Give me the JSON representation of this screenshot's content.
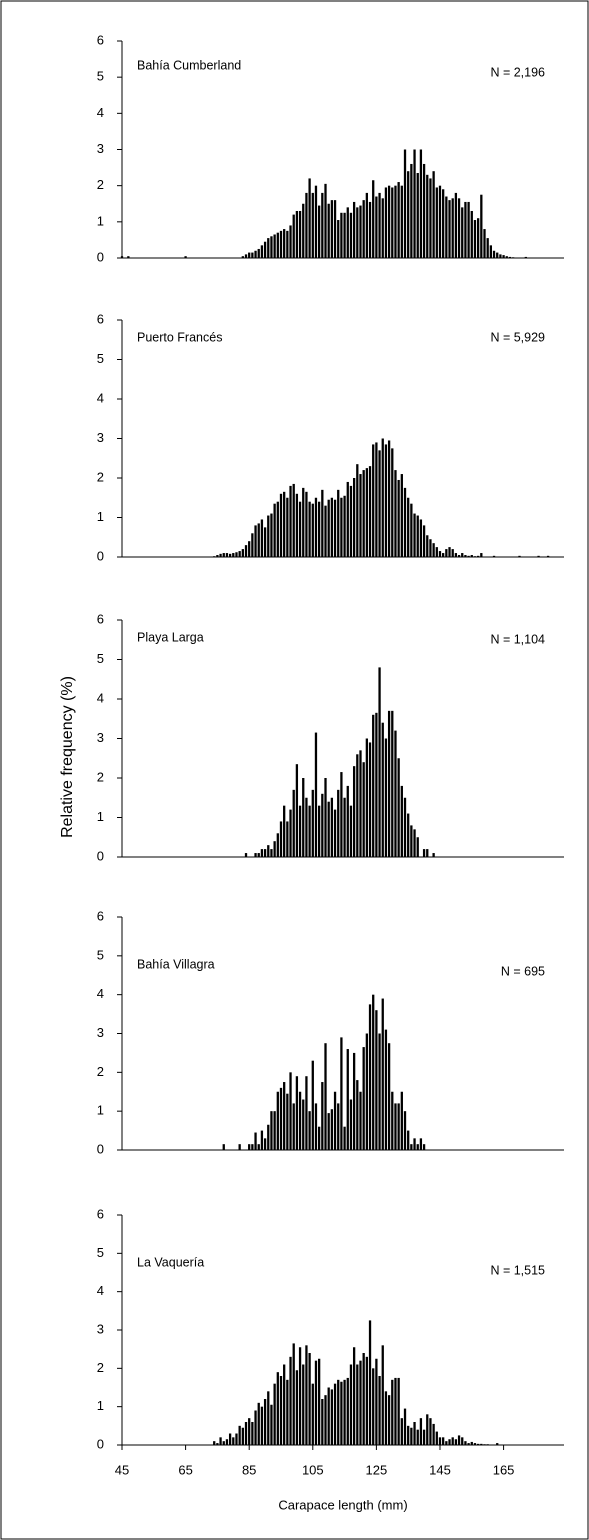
{
  "chart_data": [
    {
      "type": "bar",
      "title": "Bahía Cumberland",
      "annotation": "N = 2,196",
      "color": "#000000",
      "x": [
        45,
        47,
        65,
        83,
        84,
        85,
        86,
        87,
        88,
        89,
        90,
        91,
        92,
        93,
        94,
        95,
        96,
        97,
        98,
        99,
        100,
        101,
        102,
        103,
        104,
        105,
        106,
        107,
        108,
        109,
        110,
        111,
        112,
        113,
        114,
        115,
        116,
        117,
        118,
        119,
        120,
        121,
        122,
        123,
        124,
        125,
        126,
        127,
        128,
        129,
        130,
        131,
        132,
        133,
        134,
        135,
        136,
        137,
        138,
        139,
        140,
        141,
        142,
        143,
        144,
        145,
        146,
        147,
        148,
        149,
        150,
        151,
        152,
        153,
        154,
        155,
        156,
        157,
        158,
        159,
        160,
        161,
        162,
        163,
        164,
        165,
        166,
        167,
        168,
        169,
        170,
        171,
        172
      ],
      "values": [
        0.05,
        0.05,
        0.05,
        0.05,
        0.1,
        0.15,
        0.15,
        0.2,
        0.25,
        0.35,
        0.45,
        0.55,
        0.6,
        0.65,
        0.7,
        0.75,
        0.8,
        0.75,
        0.9,
        1.2,
        1.3,
        1.3,
        1.5,
        1.8,
        2.2,
        1.8,
        2.0,
        1.45,
        1.8,
        2.05,
        1.5,
        1.6,
        1.6,
        1.05,
        1.25,
        1.25,
        1.4,
        1.25,
        1.55,
        1.4,
        1.45,
        1.6,
        1.8,
        1.55,
        2.15,
        1.7,
        1.8,
        1.65,
        1.95,
        2.0,
        1.95,
        2.0,
        2.1,
        2.0,
        3.0,
        2.4,
        2.6,
        3.0,
        2.35,
        3.0,
        2.6,
        2.3,
        2.2,
        2.4,
        1.95,
        2.0,
        1.9,
        1.7,
        1.6,
        1.65,
        1.8,
        1.65,
        1.4,
        1.55,
        1.55,
        1.3,
        1.05,
        1.1,
        1.75,
        0.8,
        0.55,
        0.35,
        0.2,
        0.15,
        0.1,
        0.08,
        0.05,
        0.03,
        0.02,
        0,
        0,
        0,
        0.03
      ],
      "xlim": [
        45,
        184
      ],
      "ylim": [
        0,
        6
      ],
      "yticks": [
        0,
        1,
        2,
        3,
        4,
        5,
        6
      ]
    },
    {
      "type": "bar",
      "title": "Puerto Francés",
      "annotation": "N = 5,929",
      "color": "#000000",
      "x": [
        74,
        75,
        76,
        77,
        78,
        79,
        80,
        81,
        82,
        83,
        84,
        85,
        86,
        87,
        88,
        89,
        90,
        91,
        92,
        93,
        94,
        95,
        96,
        97,
        98,
        99,
        100,
        101,
        102,
        103,
        104,
        105,
        106,
        107,
        108,
        109,
        110,
        111,
        112,
        113,
        114,
        115,
        116,
        117,
        118,
        119,
        120,
        121,
        122,
        123,
        124,
        125,
        126,
        127,
        128,
        129,
        130,
        131,
        132,
        133,
        134,
        135,
        136,
        137,
        138,
        139,
        140,
        141,
        142,
        143,
        144,
        145,
        146,
        147,
        148,
        149,
        150,
        151,
        152,
        153,
        154,
        155,
        156,
        157,
        158,
        162,
        170,
        176,
        179
      ],
      "values": [
        0.02,
        0.05,
        0.08,
        0.1,
        0.1,
        0.08,
        0.1,
        0.12,
        0.15,
        0.2,
        0.3,
        0.4,
        0.6,
        0.8,
        0.85,
        0.95,
        0.75,
        1.05,
        1.1,
        1.35,
        1.4,
        1.6,
        1.65,
        1.5,
        1.8,
        1.85,
        1.6,
        1.4,
        1.75,
        1.65,
        1.4,
        1.35,
        1.5,
        1.4,
        1.7,
        1.3,
        1.45,
        1.5,
        1.45,
        1.7,
        1.5,
        1.55,
        1.9,
        1.8,
        2.0,
        2.35,
        2.1,
        2.2,
        2.25,
        2.3,
        2.85,
        2.9,
        2.7,
        3.0,
        2.85,
        2.95,
        2.75,
        2.2,
        1.95,
        2.1,
        1.75,
        1.5,
        1.35,
        1.1,
        1.05,
        0.95,
        0.8,
        0.55,
        0.45,
        0.35,
        0.25,
        0.15,
        0.1,
        0.2,
        0.25,
        0.2,
        0.1,
        0.05,
        0.1,
        0.05,
        0.03,
        0.05,
        0.02,
        0.03,
        0.1,
        0.03,
        0.03,
        0.03,
        0.03
      ],
      "xlim": [
        45,
        184
      ],
      "ylim": [
        0,
        6
      ],
      "yticks": [
        0,
        1,
        2,
        3,
        4,
        5,
        6
      ]
    },
    {
      "type": "bar",
      "title": "Playa Larga",
      "annotation": "N = 1,104",
      "ylabel": "Relative frequency (%)",
      "color": "#000000",
      "x": [
        84,
        87,
        88,
        89,
        90,
        91,
        92,
        93,
        94,
        95,
        96,
        97,
        98,
        99,
        100,
        101,
        102,
        103,
        104,
        105,
        106,
        107,
        108,
        109,
        110,
        111,
        112,
        113,
        114,
        115,
        116,
        117,
        118,
        119,
        120,
        121,
        122,
        123,
        124,
        125,
        126,
        127,
        128,
        129,
        130,
        131,
        132,
        133,
        134,
        135,
        136,
        137,
        138,
        140,
        141,
        143
      ],
      "values": [
        0.1,
        0.1,
        0.1,
        0.2,
        0.2,
        0.3,
        0.2,
        0.4,
        0.6,
        0.9,
        1.3,
        0.9,
        1.2,
        1.7,
        2.35,
        1.3,
        2.0,
        1.5,
        1.3,
        1.7,
        3.15,
        1.3,
        1.6,
        2.0,
        1.4,
        1.5,
        1.2,
        1.7,
        2.15,
        1.5,
        1.8,
        1.3,
        2.3,
        2.6,
        2.7,
        2.4,
        3.0,
        2.9,
        3.6,
        3.65,
        4.8,
        3.4,
        3.0,
        3.7,
        3.7,
        3.2,
        2.5,
        1.8,
        1.5,
        1.1,
        0.8,
        0.7,
        0.5,
        0.2,
        0.2,
        0.1
      ],
      "xlim": [
        45,
        184
      ],
      "ylim": [
        0,
        6
      ],
      "yticks": [
        0,
        1,
        2,
        3,
        4,
        5,
        6
      ]
    },
    {
      "type": "bar",
      "title": "Bahía Villagra",
      "annotation": "N = 695",
      "color": "#000000",
      "x": [
        77,
        82,
        85,
        86,
        87,
        88,
        89,
        90,
        91,
        92,
        93,
        94,
        95,
        96,
        97,
        98,
        99,
        100,
        101,
        102,
        103,
        104,
        105,
        106,
        107,
        108,
        109,
        110,
        111,
        112,
        113,
        114,
        115,
        116,
        117,
        118,
        119,
        120,
        121,
        122,
        123,
        124,
        125,
        126,
        127,
        128,
        129,
        130,
        131,
        132,
        133,
        134,
        135,
        136,
        137,
        138,
        139,
        140
      ],
      "values": [
        0.15,
        0.15,
        0.15,
        0.15,
        0.45,
        0.15,
        0.5,
        0.3,
        0.65,
        1.0,
        1.0,
        1.5,
        1.6,
        1.75,
        1.45,
        2.0,
        1.2,
        1.9,
        1.5,
        1.3,
        1.9,
        1.0,
        2.3,
        1.2,
        0.6,
        1.75,
        2.75,
        0.95,
        1.05,
        1.5,
        1.2,
        2.9,
        0.6,
        2.6,
        1.3,
        2.5,
        1.8,
        1.5,
        2.65,
        3.0,
        3.75,
        4.0,
        3.6,
        3.0,
        3.9,
        3.1,
        2.75,
        1.5,
        1.2,
        1.2,
        1.5,
        1.0,
        0.5,
        0.15,
        0.3,
        0.15,
        0.3,
        0.15
      ],
      "xlim": [
        45,
        184
      ],
      "ylim": [
        0,
        6
      ],
      "yticks": [
        0,
        1,
        2,
        3,
        4,
        5,
        6
      ]
    },
    {
      "type": "bar",
      "title": "La Vaquería",
      "annotation": "N = 1,515",
      "xlabel": "Carapace length (mm)",
      "color": "#000000",
      "x": [
        74,
        75,
        76,
        77,
        78,
        79,
        80,
        81,
        82,
        83,
        84,
        85,
        86,
        87,
        88,
        89,
        90,
        91,
        92,
        93,
        94,
        95,
        96,
        97,
        98,
        99,
        100,
        101,
        102,
        103,
        104,
        105,
        106,
        107,
        108,
        109,
        110,
        111,
        112,
        113,
        114,
        115,
        116,
        117,
        118,
        119,
        120,
        121,
        122,
        123,
        124,
        125,
        126,
        127,
        128,
        129,
        130,
        131,
        132,
        133,
        134,
        135,
        136,
        137,
        138,
        139,
        140,
        141,
        142,
        143,
        144,
        145,
        146,
        147,
        148,
        149,
        150,
        151,
        152,
        153,
        154,
        155,
        156,
        157,
        158,
        159,
        160,
        163
      ],
      "values": [
        0.1,
        0.05,
        0.2,
        0.1,
        0.15,
        0.3,
        0.2,
        0.3,
        0.5,
        0.45,
        0.6,
        0.7,
        0.6,
        0.9,
        1.1,
        1.0,
        1.2,
        1.4,
        1.05,
        1.6,
        1.9,
        1.8,
        2.1,
        1.7,
        2.3,
        2.65,
        1.95,
        2.55,
        2.1,
        2.6,
        2.4,
        1.6,
        2.2,
        2.25,
        1.2,
        1.3,
        1.5,
        1.45,
        1.6,
        1.7,
        1.65,
        1.7,
        1.75,
        2.1,
        2.55,
        2.1,
        2.2,
        2.4,
        2.3,
        3.25,
        2.0,
        2.25,
        1.8,
        2.6,
        1.4,
        1.3,
        1.7,
        1.75,
        1.75,
        0.7,
        0.95,
        0.5,
        0.45,
        0.6,
        0.4,
        0.7,
        0.4,
        0.8,
        0.7,
        0.55,
        0.35,
        0.2,
        0.2,
        0.1,
        0.15,
        0.2,
        0.15,
        0.25,
        0.2,
        0.1,
        0.05,
        0.08,
        0.05,
        0.03,
        0.03,
        0.02,
        0.02,
        0.05
      ],
      "xlim": [
        45,
        184
      ],
      "ylim": [
        0,
        6
      ],
      "yticks": [
        0,
        1,
        2,
        3,
        4,
        5,
        6
      ],
      "xticks": [
        45,
        65,
        85,
        105,
        125,
        145,
        165
      ]
    }
  ]
}
